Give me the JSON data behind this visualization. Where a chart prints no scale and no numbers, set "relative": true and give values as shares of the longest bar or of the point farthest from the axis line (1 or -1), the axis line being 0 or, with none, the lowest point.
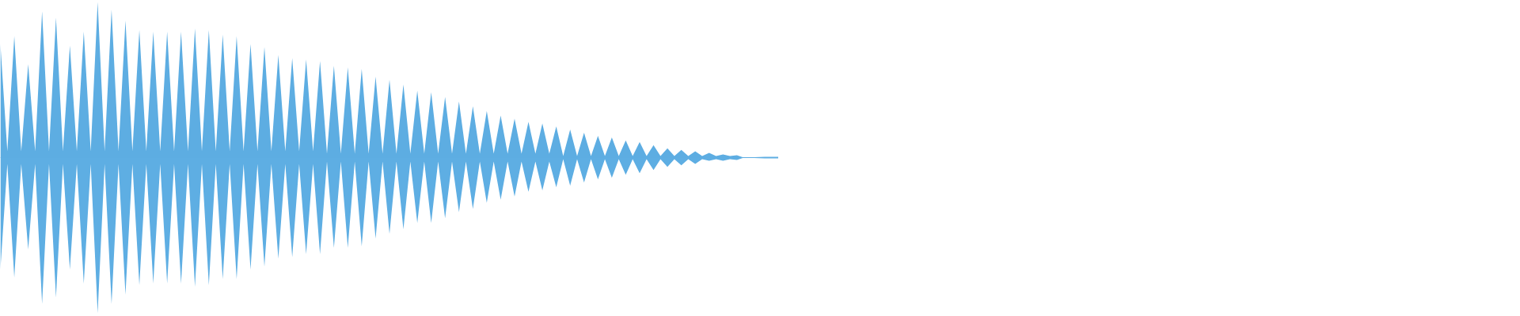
{
  "chart_data": {
    "type": "area",
    "relative": true,
    "ref_lines": [
      {
        "axis": "y",
        "value": 0,
        "color": "#5dade2"
      }
    ],
    "categories": [
      null,
      null,
      null,
      null,
      null,
      null,
      null,
      null,
      null,
      null,
      null,
      null,
      null,
      null,
      null,
      null,
      null,
      null,
      null,
      null,
      null,
      null,
      null,
      null,
      null,
      null,
      null,
      null,
      null,
      null,
      null,
      null,
      null,
      null,
      null,
      null,
      null,
      null,
      null,
      null,
      null,
      null,
      null,
      null,
      null,
      null,
      null,
      null,
      null,
      null,
      null,
      null,
      null,
      null,
      null,
      null,
      null,
      null,
      null,
      null,
      null,
      null,
      null,
      null,
      null,
      null,
      null,
      null,
      null,
      null,
      null,
      null,
      null,
      null,
      null,
      null,
      null,
      null,
      null,
      null,
      null,
      null,
      null,
      null,
      null,
      null,
      null,
      null,
      null,
      null,
      null,
      null,
      null,
      null,
      null,
      null,
      null,
      null,
      null,
      null,
      null,
      null,
      null,
      null,
      null,
      null,
      null,
      null,
      null,
      null,
      null,
      null,
      null
    ],
    "series": [
      {
        "color": "#5dade2",
        "values": [
          0.73,
          0.04,
          0.78,
          0.04,
          0.6,
          0.04,
          0.94,
          0.04,
          0.9,
          0.04,
          0.72,
          0.04,
          0.81,
          0.04,
          1.0,
          0.04,
          0.95,
          0.04,
          0.88,
          0.04,
          0.82,
          0.04,
          0.81,
          0.04,
          0.81,
          0.04,
          0.81,
          0.04,
          0.83,
          0.04,
          0.82,
          0.04,
          0.79,
          0.04,
          0.78,
          0.04,
          0.73,
          0.04,
          0.71,
          0.04,
          0.66,
          0.04,
          0.64,
          0.04,
          0.63,
          0.04,
          0.62,
          0.025,
          0.59,
          0.025,
          0.58,
          0.025,
          0.57,
          0.025,
          0.52,
          0.025,
          0.5,
          0.025,
          0.47,
          0.025,
          0.43,
          0.025,
          0.42,
          0.025,
          0.39,
          0.025,
          0.36,
          0.025,
          0.33,
          0.025,
          0.3,
          0.025,
          0.27,
          0.025,
          0.25,
          0.025,
          0.23,
          0.025,
          0.22,
          0.025,
          0.2,
          0.01,
          0.18,
          0.01,
          0.16,
          0.01,
          0.14,
          0.01,
          0.13,
          0.01,
          0.11,
          0.01,
          0.1,
          0.01,
          0.08,
          0.01,
          0.06,
          0.01,
          0.05,
          0.01,
          0.04,
          0.01,
          0.03,
          0.01,
          0.02,
          0.01,
          0.015,
          0,
          null,
          null,
          0.005,
          0.005,
          0.005
        ]
      },
      {
        "color": "#5eaee3",
        "values": [
          -0.72,
          -0.04,
          -0.77,
          -0.04,
          -0.59,
          -0.04,
          -0.94,
          -0.04,
          -0.9,
          -0.04,
          -0.72,
          -0.04,
          -0.81,
          -0.04,
          -1.0,
          -0.04,
          -0.94,
          -0.04,
          -0.88,
          -0.04,
          -0.82,
          -0.04,
          -0.81,
          -0.04,
          -0.81,
          -0.04,
          -0.81,
          -0.04,
          -0.83,
          -0.04,
          -0.82,
          -0.04,
          -0.78,
          -0.04,
          -0.78,
          -0.04,
          -0.72,
          -0.04,
          -0.7,
          -0.04,
          -0.65,
          -0.04,
          -0.64,
          -0.04,
          -0.62,
          -0.04,
          -0.62,
          -0.025,
          -0.58,
          -0.025,
          -0.58,
          -0.025,
          -0.57,
          -0.025,
          -0.52,
          -0.025,
          -0.49,
          -0.025,
          -0.46,
          -0.025,
          -0.42,
          -0.025,
          -0.42,
          -0.025,
          -0.39,
          -0.025,
          -0.35,
          -0.025,
          -0.33,
          -0.025,
          -0.29,
          -0.025,
          -0.27,
          -0.025,
          -0.25,
          -0.025,
          -0.22,
          -0.025,
          -0.21,
          -0.025,
          -0.19,
          -0.01,
          -0.18,
          -0.01,
          -0.16,
          -0.01,
          -0.14,
          -0.01,
          -0.13,
          -0.01,
          -0.11,
          -0.01,
          -0.1,
          -0.01,
          -0.08,
          -0.01,
          -0.06,
          -0.01,
          -0.05,
          -0.01,
          -0.04,
          -0.01,
          -0.02,
          -0.01,
          -0.02,
          -0.01,
          -0.015,
          0,
          null,
          null,
          -0.005,
          -0.005,
          -0.005
        ]
      }
    ]
  }
}
